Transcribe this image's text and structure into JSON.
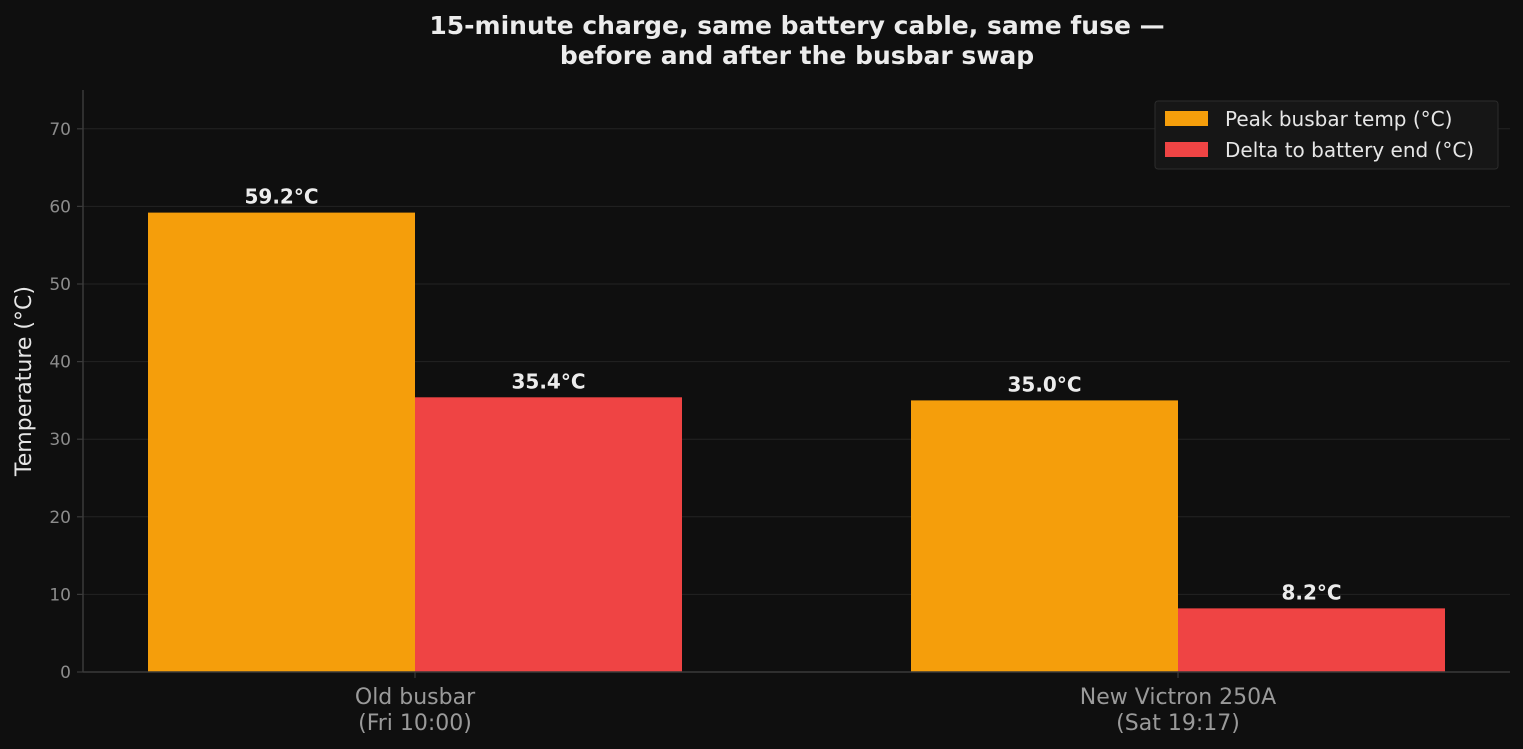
{
  "chart_data": {
    "type": "bar",
    "title_lines": [
      "15-minute charge, same battery cable, same fuse —",
      "before and after the busbar swap"
    ],
    "ylabel": "Temperature (°C)",
    "xlabel": "",
    "ylim": [
      0,
      75
    ],
    "yticks": [
      0,
      10,
      20,
      30,
      40,
      50,
      60,
      70
    ],
    "grid": true,
    "legend_position": "top-right",
    "categories": [
      [
        "Old busbar",
        "(Fri 10:00)"
      ],
      [
        "New Victron 250A",
        "(Sat 19:17)"
      ]
    ],
    "series": [
      {
        "name": "Peak busbar temp (°C)",
        "values": [
          59.2,
          35.0
        ],
        "labels": [
          "59.2°C",
          "35.0°C"
        ],
        "color": "#f59e0b"
      },
      {
        "name": "Delta to battery end (°C)",
        "values": [
          35.4,
          8.2
        ],
        "labels": [
          "35.4°C",
          "8.2°C"
        ],
        "color": "#ef4444"
      }
    ]
  }
}
